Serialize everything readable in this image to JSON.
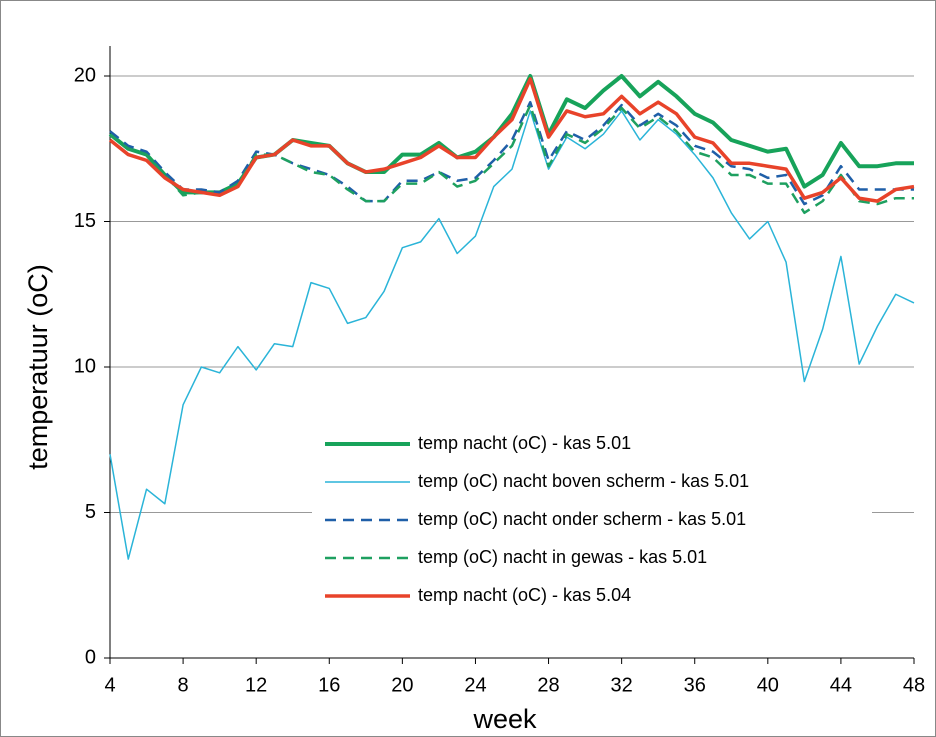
{
  "chart_data": {
    "type": "line",
    "x_label": "week",
    "y_label": "temperatuur (oC)",
    "x": [
      4,
      5,
      6,
      7,
      8,
      9,
      10,
      11,
      12,
      13,
      14,
      15,
      16,
      17,
      18,
      19,
      20,
      21,
      22,
      23,
      24,
      25,
      26,
      27,
      28,
      29,
      30,
      31,
      32,
      33,
      34,
      35,
      36,
      37,
      38,
      39,
      40,
      41,
      42,
      43,
      44,
      45,
      46,
      47,
      48
    ],
    "xlim": [
      4,
      48
    ],
    "xticks": [
      4,
      8,
      12,
      16,
      20,
      24,
      28,
      32,
      36,
      40,
      44,
      48
    ],
    "ylim": [
      0,
      20
    ],
    "yticks": [
      0,
      5,
      10,
      15,
      20
    ],
    "grid": true,
    "series": [
      {
        "name": "temp nacht (oC) - kas 5.01",
        "color": "#17a35a",
        "width": 4,
        "dash": "solid",
        "values": [
          18.0,
          17.5,
          17.3,
          16.6,
          16.0,
          16.0,
          16.0,
          16.3,
          17.2,
          17.3,
          17.8,
          17.7,
          17.6,
          17.0,
          16.7,
          16.7,
          17.3,
          17.3,
          17.7,
          17.2,
          17.4,
          17.9,
          18.7,
          20.0,
          18.0,
          19.2,
          18.9,
          19.5,
          20.0,
          19.3,
          19.8,
          19.3,
          18.7,
          18.4,
          17.8,
          17.6,
          17.4,
          17.5,
          16.2,
          16.6,
          17.7,
          16.9,
          16.9,
          17.0,
          17.0
        ]
      },
      {
        "name": "temp (oC)  nacht boven scherm - kas 5.01",
        "color": "#2ab4d8",
        "width": 1.5,
        "dash": "solid",
        "values": [
          7.0,
          3.4,
          5.8,
          5.3,
          8.7,
          10.0,
          9.8,
          10.7,
          9.9,
          10.8,
          10.7,
          12.9,
          12.7,
          11.5,
          11.7,
          12.6,
          14.1,
          14.3,
          15.1,
          13.9,
          14.5,
          16.2,
          16.8,
          18.8,
          16.8,
          17.9,
          17.5,
          18.0,
          18.8,
          17.8,
          18.5,
          18.0,
          17.3,
          16.5,
          15.3,
          14.4,
          15.0,
          13.6,
          9.5,
          11.3,
          13.8,
          10.1,
          11.4,
          12.5,
          12.2
        ]
      },
      {
        "name": "temp (oC)  nacht onder scherm - kas 5.01",
        "color": "#1f5fa8",
        "width": 2.5,
        "dash": "dashed",
        "values": [
          18.1,
          17.6,
          17.4,
          16.7,
          16.1,
          16.1,
          16.0,
          16.4,
          17.4,
          17.3,
          17.0,
          16.8,
          16.6,
          16.2,
          15.7,
          15.7,
          16.4,
          16.4,
          16.7,
          16.4,
          16.5,
          17.1,
          17.8,
          19.1,
          17.1,
          18.1,
          17.8,
          18.3,
          19.0,
          18.3,
          18.7,
          18.3,
          17.6,
          17.4,
          16.9,
          16.8,
          16.5,
          16.6,
          15.6,
          15.9,
          16.9,
          16.1,
          16.1,
          16.1,
          16.1
        ]
      },
      {
        "name": "temp (oC)  nacht in gewas - kas 5.01",
        "color": "#1ea060",
        "width": 2.5,
        "dash": "dashed",
        "values": [
          18.0,
          17.5,
          17.3,
          16.6,
          15.9,
          16.0,
          15.9,
          16.3,
          17.3,
          17.3,
          17.0,
          16.7,
          16.6,
          16.1,
          15.7,
          15.7,
          16.3,
          16.3,
          16.7,
          16.2,
          16.4,
          17.0,
          17.6,
          19.0,
          16.9,
          18.0,
          17.7,
          18.2,
          18.9,
          18.2,
          18.6,
          18.1,
          17.4,
          17.2,
          16.6,
          16.6,
          16.3,
          16.3,
          15.3,
          15.7,
          16.6,
          15.7,
          15.6,
          15.8,
          15.8
        ]
      },
      {
        "name": "temp nacht (oC) - kas 5.04",
        "color": "#e8432a",
        "width": 3.5,
        "dash": "solid",
        "values": [
          17.8,
          17.3,
          17.1,
          16.5,
          16.1,
          16.0,
          15.9,
          16.2,
          17.2,
          17.3,
          17.8,
          17.6,
          17.6,
          17.0,
          16.7,
          16.8,
          17.0,
          17.2,
          17.6,
          17.2,
          17.2,
          17.9,
          18.5,
          19.9,
          17.9,
          18.8,
          18.6,
          18.7,
          19.3,
          18.7,
          19.1,
          18.7,
          17.9,
          17.7,
          17.0,
          17.0,
          16.9,
          16.8,
          15.8,
          16.0,
          16.5,
          15.8,
          15.7,
          16.1,
          16.2
        ]
      }
    ]
  }
}
